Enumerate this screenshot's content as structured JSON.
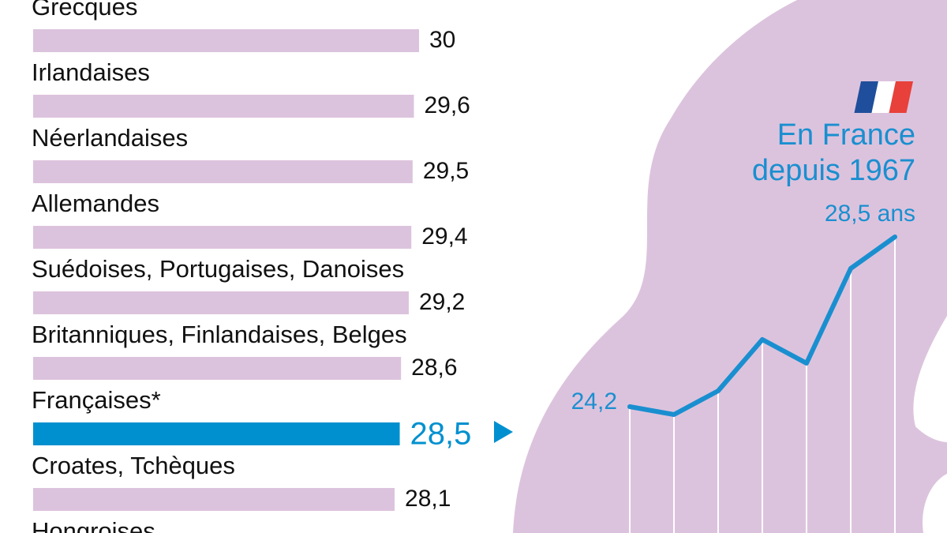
{
  "chart_data": [
    {
      "type": "hbar",
      "categories": [
        "Grecques",
        "Irlandaises",
        "Néerlandaises",
        "Allemandes",
        "Suédoises, Portugaises, Danoises",
        "Britanniques, Finlandaises, Belges",
        "Françaises*",
        "Croates, Tchèques",
        "Hongroises"
      ],
      "values": [
        30,
        29.6,
        29.5,
        29.4,
        29.2,
        28.6,
        28.5,
        28.1,
        null
      ],
      "value_labels": [
        "30",
        "29,6",
        "29,5",
        "29,4",
        "29,2",
        "28,6",
        "28,5",
        "28,1",
        null
      ],
      "colors": [
        "#dcc3dd",
        "#dcc3dd",
        "#dcc3dd",
        "#dcc3dd",
        "#dcc3dd",
        "#dcc3dd",
        "#0090cf",
        "#dcc3dd",
        "#dcc3dd"
      ],
      "xlim": [
        0,
        30
      ]
    },
    {
      "type": "line",
      "title_lines": [
        "En France",
        "depuis 1967"
      ],
      "categories": [
        null,
        null,
        null,
        null,
        null,
        null,
        null
      ],
      "values": [
        24.2,
        24.0,
        24.6,
        25.9,
        25.3,
        27.7,
        28.5
      ],
      "value_labels": [
        "24,2",
        null,
        null,
        null,
        null,
        null,
        "28,5 ans"
      ],
      "color": "#1a8fd0",
      "ylim": [
        21,
        29
      ]
    }
  ]
}
